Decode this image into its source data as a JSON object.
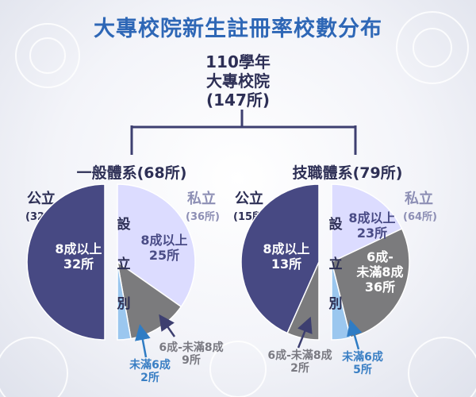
{
  "title": "大專校院新生註冊率校數分布",
  "root": {
    "year_line": "110學年",
    "name_line": "大專校院",
    "count_line": "(147所)"
  },
  "colors": {
    "public_8plus": "#474983",
    "private_8plus": "#dcdcff",
    "private_6to8": "#7b7b7d",
    "private_under6": "#9bc7ef",
    "connector": "#3d3f70",
    "arrow_gray": "#3d3f70",
    "arrow_blue": "#2f7cc4"
  },
  "chart_data": [
    {
      "type": "pie",
      "title": "一般體系(68所)",
      "public_label": "公立",
      "public_count": "(32所)",
      "private_label": "私立",
      "private_count": "(36所)",
      "divider_label": [
        "設",
        "立",
        "別"
      ],
      "public": [
        {
          "name": "8成以上",
          "value": 32,
          "label_line1": "8成以上",
          "label_line2": "32所"
        }
      ],
      "private": [
        {
          "name": "8成以上",
          "value": 25,
          "label_line1": "8成以上",
          "label_line2": "25所"
        },
        {
          "name": "6成-未滿8成",
          "value": 9,
          "label_line1": "6成-未滿8成",
          "label_line2": "9所"
        },
        {
          "name": "未滿6成",
          "value": 2,
          "label_line1": "未滿6成",
          "label_line2": "2所"
        }
      ]
    },
    {
      "type": "pie",
      "title": "技職體系(79所)",
      "public_label": "公立",
      "public_count": "(15所)",
      "private_label": "私立",
      "private_count": "(64所)",
      "divider_label": [
        "設",
        "立",
        "別"
      ],
      "public": [
        {
          "name": "8成以上",
          "value": 13,
          "label_line1": "8成以上",
          "label_line2": "13所"
        },
        {
          "name": "6成-未滿8成",
          "value": 2,
          "label_line1": "6成-未滿8成",
          "label_line2": "2所"
        }
      ],
      "private": [
        {
          "name": "8成以上",
          "value": 23,
          "label_line1": "8成以上",
          "label_line2": "23所"
        },
        {
          "name": "6成-未滿8成",
          "value": 36,
          "label_line1": "6成-",
          "label_line1b": "未滿8成",
          "label_line2": "36所"
        },
        {
          "name": "未滿6成",
          "value": 5,
          "label_line1": "未滿6成",
          "label_line2": "5所"
        }
      ]
    }
  ]
}
